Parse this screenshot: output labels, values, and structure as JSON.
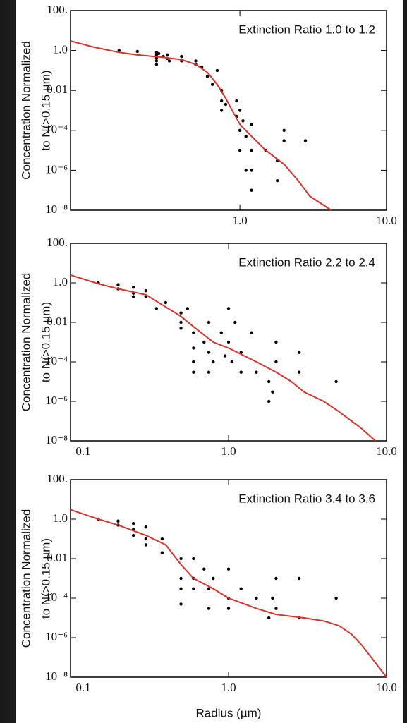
{
  "chart_data": [
    {
      "type": "scatter",
      "title": "Extinction Ratio 1.0 to 1.2",
      "y_label": [
        "Concentration Normalized",
        "to N(>0.15 µm)"
      ],
      "log_x": true,
      "log_y": true,
      "xlim": [
        0.07,
        10
      ],
      "xticks": [
        {
          "value": 1,
          "label": "1.0"
        },
        {
          "value": 10,
          "label": "10.0"
        }
      ],
      "ylim": [
        1e-08,
        100
      ],
      "yticks": [
        {
          "value": 100,
          "label": "100."
        },
        {
          "value": 1,
          "label": "1.0"
        },
        0.01,
        {
          "value": 0.0001,
          "label": "10⁻⁴"
        },
        {
          "value": 1e-06,
          "label": "10⁻⁶"
        },
        {
          "value": 1e-08,
          "label": "10⁻⁸"
        }
      ],
      "point_color": "#000000",
      "x": [
        0.15,
        0.2,
        0.27,
        0.27,
        0.27,
        0.27,
        0.27,
        0.28,
        0.3,
        0.32,
        0.32,
        0.33,
        0.4,
        0.4,
        0.5,
        0.5,
        0.55,
        0.6,
        0.65,
        0.7,
        0.75,
        0.75,
        0.75,
        0.8,
        0.95,
        0.95,
        1.0,
        1.0,
        1.0,
        1.05,
        1.1,
        1.1,
        1.2,
        1.2,
        1.2,
        1.2,
        1.5,
        1.8,
        1.8,
        2.0,
        2.0,
        2.8
      ],
      "values": [
        1.0,
        0.9,
        0.8,
        0.6,
        0.4,
        0.3,
        0.2,
        0.7,
        0.5,
        0.6,
        0.4,
        0.3,
        0.5,
        0.3,
        0.3,
        0.2,
        0.15,
        0.05,
        0.02,
        0.1,
        0.01,
        0.003,
        0.001,
        0.002,
        0.003,
        0.0005,
        0.001,
        0.0001,
        1e-05,
        0.0003,
        5e-05,
        1e-06,
        0.0002,
        1e-05,
        1e-06,
        1e-07,
        1e-05,
        3e-06,
        3e-07,
        3e-05,
        0.0001,
        3e-05
      ],
      "curve_color": "#d9322b",
      "curve_x": [
        0.07,
        0.1,
        0.15,
        0.2,
        0.3,
        0.4,
        0.5,
        0.6,
        0.7,
        0.8,
        0.9,
        1.0,
        1.2,
        1.5,
        2.0,
        2.5,
        3.0,
        4.2
      ],
      "curve_values": [
        3,
        1.5,
        0.8,
        0.6,
        0.45,
        0.35,
        0.2,
        0.08,
        0.02,
        0.004,
        0.0008,
        0.0002,
        5e-05,
        1e-05,
        2e-06,
        3e-07,
        5e-08,
        1e-08
      ]
    },
    {
      "type": "scatter",
      "title": "Extinction Ratio 2.2 to 2.4",
      "y_label": [
        "Concentration Normalized",
        "to N(>0.15 µm)"
      ],
      "log_x": true,
      "log_y": true,
      "xlim": [
        0.1,
        10
      ],
      "xticks": [
        0.1,
        {
          "value": 1,
          "label": "1.0"
        },
        {
          "value": 10,
          "label": "10.0"
        }
      ],
      "ylim": [
        1e-08,
        100
      ],
      "yticks": [
        {
          "value": 100,
          "label": "100."
        },
        {
          "value": 1,
          "label": "1.0"
        },
        0.01,
        {
          "value": 0.0001,
          "label": "10⁻⁴"
        },
        {
          "value": 1e-06,
          "label": "10⁻⁶"
        },
        {
          "value": 1e-08,
          "label": "10⁻⁸"
        }
      ],
      "point_color": "#000000",
      "x": [
        0.15,
        0.2,
        0.2,
        0.25,
        0.25,
        0.25,
        0.3,
        0.3,
        0.35,
        0.4,
        0.5,
        0.5,
        0.5,
        0.55,
        0.6,
        0.6,
        0.6,
        0.6,
        0.7,
        0.75,
        0.75,
        0.75,
        0.8,
        0.9,
        0.95,
        1.0,
        1.0,
        1.05,
        1.1,
        1.2,
        1.2,
        1.4,
        1.5,
        1.8,
        1.8,
        1.9,
        2.0,
        2.0,
        2.8,
        2.8,
        4.8
      ],
      "values": [
        1.0,
        0.8,
        0.5,
        0.6,
        0.3,
        0.2,
        0.4,
        0.2,
        0.05,
        0.1,
        0.03,
        0.01,
        0.005,
        0.05,
        0.003,
        0.0005,
        0.0001,
        3e-05,
        0.001,
        0.01,
        0.0003,
        3e-05,
        0.0001,
        0.003,
        0.0002,
        0.05,
        0.001,
        0.0001,
        0.01,
        0.0003,
        3e-05,
        0.003,
        3e-05,
        1e-05,
        1e-06,
        3e-06,
        0.001,
        0.0001,
        0.0003,
        3e-05,
        1e-05
      ],
      "curve_color": "#d9322b",
      "curve_x": [
        0.1,
        0.15,
        0.2,
        0.3,
        0.4,
        0.5,
        0.6,
        0.8,
        1.0,
        1.5,
        2,
        2.5,
        3,
        4,
        5,
        7,
        8.5
      ],
      "curve_values": [
        2.5,
        0.9,
        0.5,
        0.25,
        0.06,
        0.02,
        0.006,
        0.001,
        0.0005,
        0.0001,
        3e-05,
        1e-05,
        3e-06,
        1e-06,
        3e-07,
        4e-08,
        1e-08
      ]
    },
    {
      "type": "scatter",
      "title": "Extinction Ratio 3.4 to 3.6",
      "y_label": [
        "Concentration Normalized",
        "to N(>0.15 µm)"
      ],
      "x_label": "Radius (µm)",
      "log_x": true,
      "log_y": true,
      "xlim": [
        0.1,
        10
      ],
      "xticks": [
        0.1,
        {
          "value": 1,
          "label": "1.0"
        },
        {
          "value": 10,
          "label": "10.0"
        }
      ],
      "ylim": [
        1e-08,
        100
      ],
      "yticks": [
        {
          "value": 100,
          "label": "100."
        },
        {
          "value": 1,
          "label": "1.0"
        },
        0.01,
        {
          "value": 0.0001,
          "label": "10⁻⁴"
        },
        {
          "value": 1e-06,
          "label": "10⁻⁶"
        },
        {
          "value": 1e-08,
          "label": "10⁻⁸"
        }
      ],
      "point_color": "#000000",
      "x": [
        0.15,
        0.2,
        0.2,
        0.25,
        0.25,
        0.25,
        0.3,
        0.3,
        0.3,
        0.38,
        0.38,
        0.5,
        0.5,
        0.5,
        0.5,
        0.6,
        0.6,
        0.6,
        0.7,
        0.75,
        0.75,
        0.8,
        1.0,
        1.0,
        1.0,
        1.2,
        1.5,
        1.8,
        1.9,
        2.0,
        2.0,
        2.8,
        2.8,
        4.8
      ],
      "values": [
        1.0,
        0.8,
        0.5,
        0.6,
        0.3,
        0.15,
        0.4,
        0.1,
        0.05,
        0.1,
        0.02,
        0.01,
        0.001,
        0.0003,
        5e-05,
        0.01,
        0.001,
        0.0003,
        0.003,
        0.0003,
        3e-05,
        0.001,
        0.003,
        0.0001,
        3e-05,
        0.0003,
        0.0001,
        1e-05,
        0.0001,
        0.001,
        3e-05,
        0.001,
        1e-05,
        0.0001
      ],
      "curve_color": "#d9322b",
      "curve_x": [
        0.1,
        0.15,
        0.2,
        0.3,
        0.4,
        0.5,
        0.6,
        0.8,
        1.0,
        1.5,
        2,
        3,
        4,
        5,
        6,
        7,
        8,
        10
      ],
      "curve_values": [
        3,
        1,
        0.5,
        0.15,
        0.05,
        0.005,
        0.001,
        0.0003,
        0.0001,
        3e-05,
        1.5e-05,
        1e-05,
        7e-06,
        4e-06,
        1.5e-06,
        4e-07,
        1e-07,
        1e-08
      ]
    }
  ]
}
